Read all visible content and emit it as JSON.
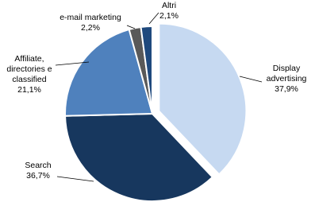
{
  "chart_data": {
    "type": "pie",
    "categories": [
      "Display advertising",
      "Search",
      "Affiliate, directories e classified",
      "e-mail marketing",
      "Altri"
    ],
    "values": [
      37.9,
      36.7,
      21.1,
      2.2,
      2.1
    ],
    "value_labels": [
      "37,9%",
      "36,7%",
      "21,1%",
      "2,2%",
      "2,1%"
    ],
    "colors": [
      "#c6d9f1",
      "#17375e",
      "#4f81bd",
      "#595959",
      "#1f497d"
    ]
  }
}
